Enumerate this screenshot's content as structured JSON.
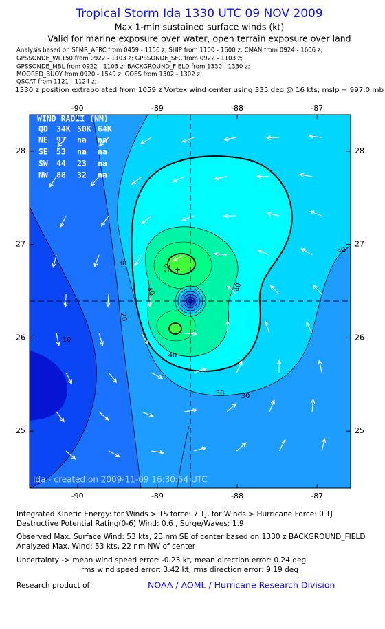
{
  "header": {
    "title": "Tropical Storm Ida 1330 UTC 09 NOV 2009",
    "subtitle": "Max 1-min sustained surface winds (kt)",
    "validity": "Valid for marine exposure over water, open terrain exposure over land",
    "analysis_lines": [
      "Analysis based on  SFMR_AFRC from 0459 - 1156 z;  SHIP from 1100 - 1600 z;  CMAN from 0924 - 1606 z;",
      "GPSSONDE_WL150 from 0922 - 1103 z;  GPSSONDE_SFC from 0922 - 1103 z;",
      "GPSSONDE_MBL from 0922 - 1103 z;  BACKGROUND_FIELD from 1330 - 1330 z;",
      "MOORED_BUOY from 0920 - 1549 z;  GOES from 1302 - 1302 z;",
      "QSCAT from 1121 - 1124 z;"
    ],
    "position_note": "1330 z position extrapolated from 1059 z Vortex wind center using 335 deg @ 16 kts; mslp = 997.0 mb"
  },
  "map": {
    "lon_range": [
      -90.6,
      -86.58
    ],
    "lat_range": [
      24.39,
      28.39
    ],
    "lon_ticks": [
      -90,
      -89,
      -88,
      -87
    ],
    "lat_ticks": [
      25,
      26,
      27,
      28
    ],
    "wind_radii": {
      "title": "WIND RADII (NM)",
      "header": [
        "QD",
        "34K",
        "50K",
        "64K"
      ],
      "rows": [
        [
          "NE",
          "97",
          "na",
          "na"
        ],
        [
          "SE",
          "53",
          "na",
          "na"
        ],
        [
          "SW",
          "44",
          "23",
          "na"
        ],
        [
          "NW",
          "88",
          "32",
          "na"
        ]
      ]
    },
    "contour_labels": [
      "30",
      "20",
      "10",
      "40",
      "50",
      "40",
      "40",
      "30",
      "30",
      "30",
      "30"
    ],
    "credit": "Ida - created on 2009-11-09 16:30:54 UTC"
  },
  "footer": {
    "ike": "Integrated Kinetic Energy:  for Winds > TS force: 7 TJ,  for Winds > Hurricane Force: 0 TJ",
    "dpr": "Destructive Potential Rating(0-6)  Wind: 0.6 , Surge/Waves: 1.9",
    "observed": "Observed Max. Surface Wind: 53 kts, 23 nm SE of center based on 1330 z BACKGROUND_FIELD",
    "analyzed": "Analyzed Max. Wind: 53 kts, 22 nm NW of center",
    "uncertainty_1": "Uncertainty -> mean wind speed error:  -0.23 kt,   mean direction error: 0.24 deg",
    "uncertainty_2": "rms wind speed error: 3.42 kt,   rms direction error: 9.19 deg",
    "research": "Research product of",
    "org": "NOAA / AOML / Hurricane Research Division"
  }
}
